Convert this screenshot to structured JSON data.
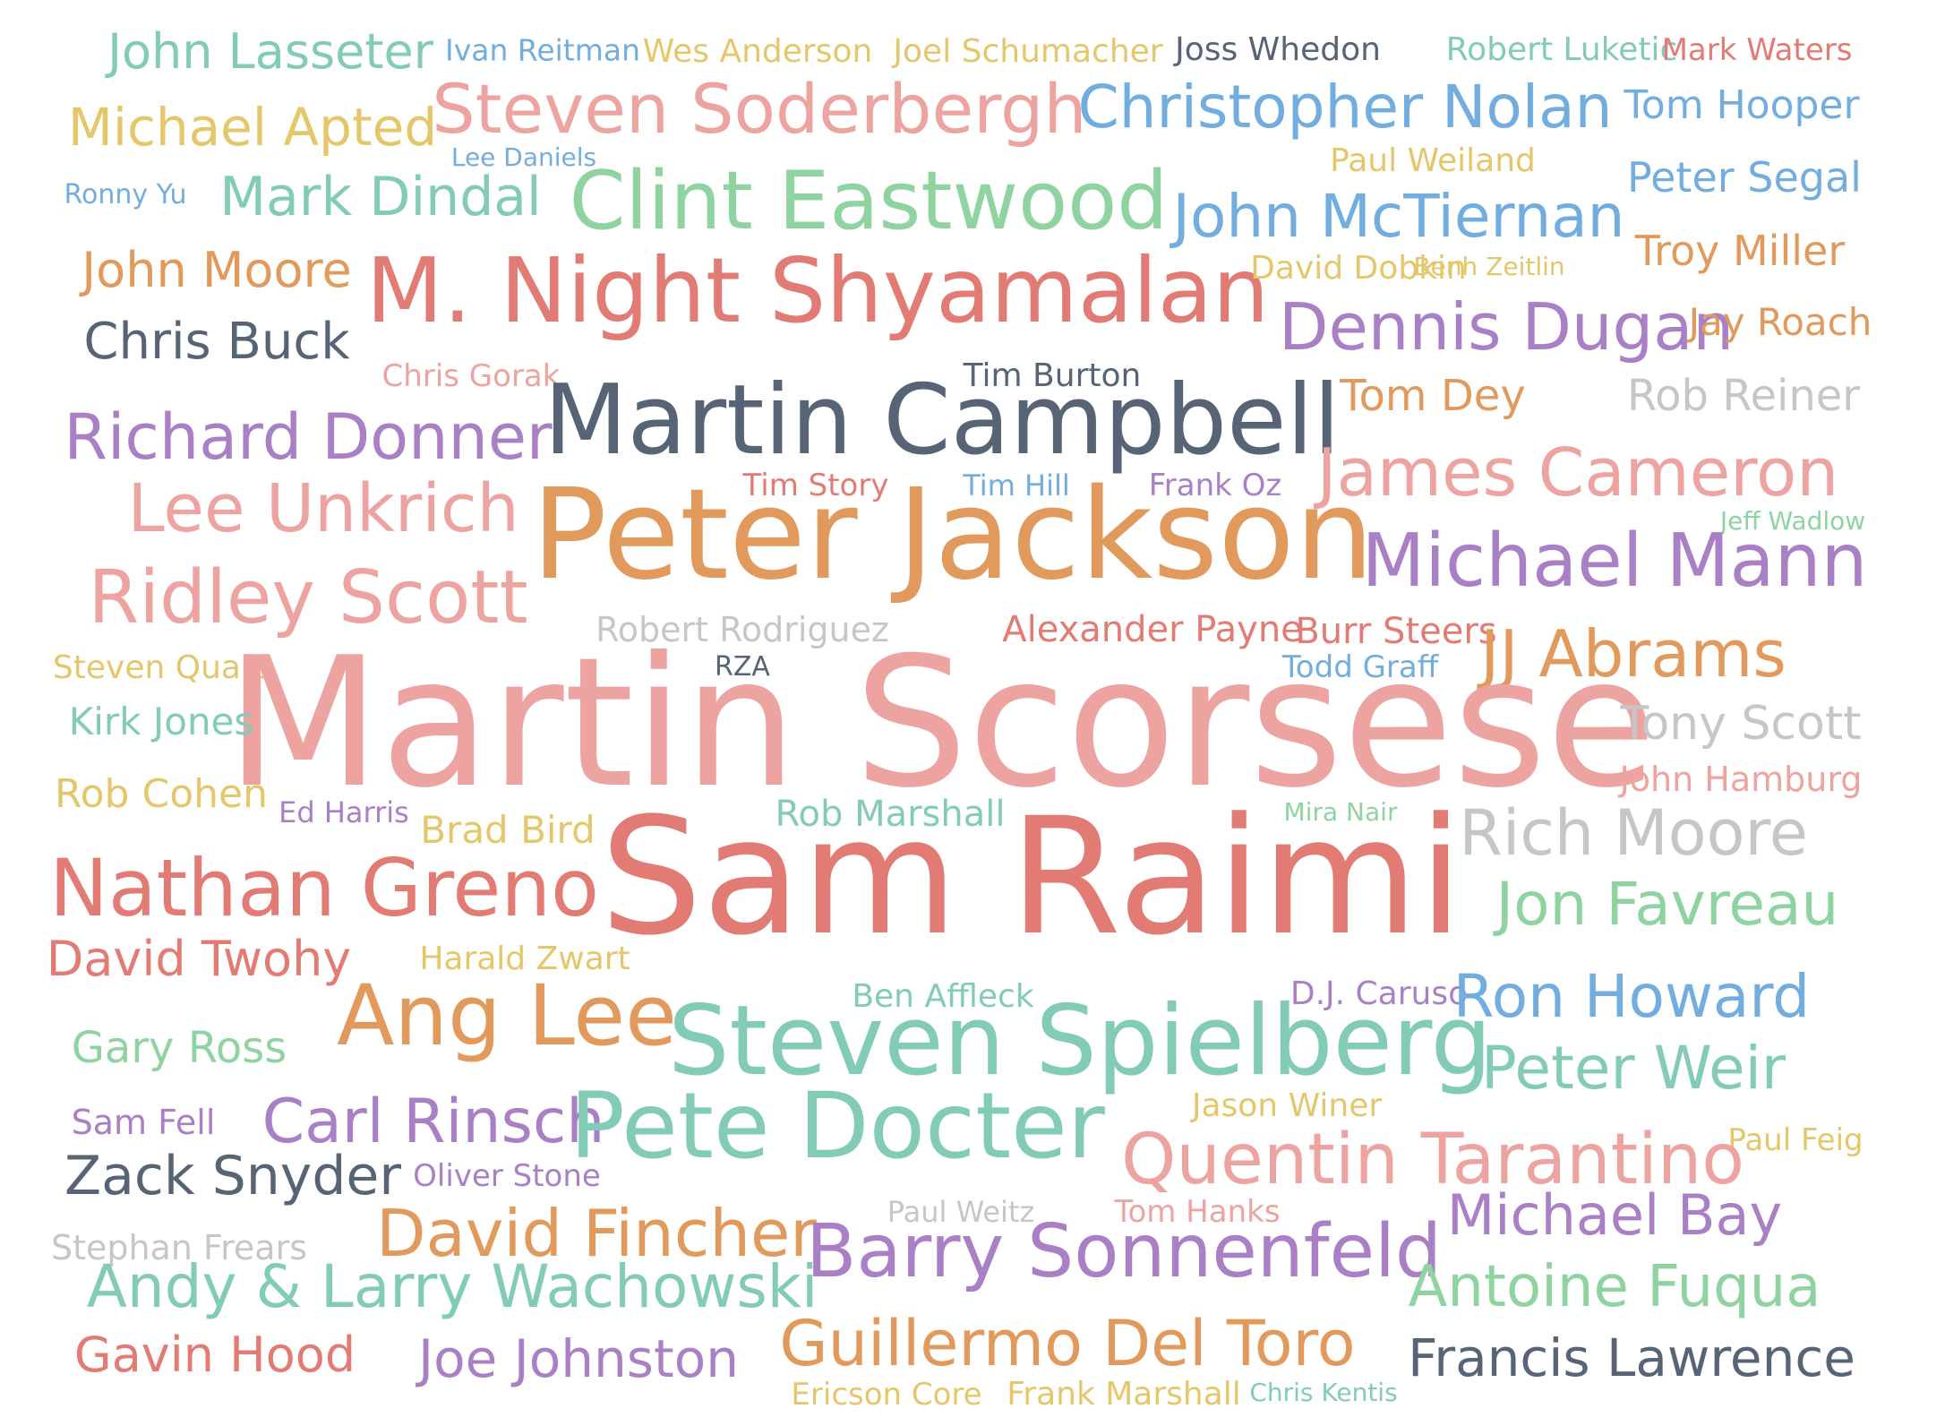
{
  "palette": {
    "teal": "#82cbb6",
    "blue": "#72ade0",
    "yellow": "#e4c76a",
    "slate": "#566476",
    "red": "#e27b73",
    "salmon": "#eda3a0",
    "green": "#8fd4a0",
    "orange": "#e29a5c",
    "purple": "#a97fc5",
    "gray": "#c6c6c6"
  },
  "words": [
    {
      "text": "John Lasseter",
      "c": "teal",
      "w": 2.5
    },
    {
      "text": "Ivan Reitman",
      "c": "blue",
      "w": 1.5
    },
    {
      "text": "Wes Anderson",
      "c": "yellow",
      "w": 1.8
    },
    {
      "text": "Joel Schumacher",
      "c": "yellow",
      "w": 1.8
    },
    {
      "text": "Joss Whedon",
      "c": "slate",
      "w": 1.8
    },
    {
      "text": "Robert Luketic",
      "c": "teal",
      "w": 1.8
    },
    {
      "text": "Mark Waters",
      "c": "red",
      "w": 1.6
    },
    {
      "text": "Michael Apted",
      "c": "yellow",
      "w": 2.7
    },
    {
      "text": "Steven Soderbergh",
      "c": "salmon",
      "w": 3.6
    },
    {
      "text": "Christopher Nolan",
      "c": "blue",
      "w": 3.2
    },
    {
      "text": "Tom Hooper",
      "c": "blue",
      "w": 2.1
    },
    {
      "text": "Lee Daniels",
      "c": "blue",
      "w": 1.4
    },
    {
      "text": "Paul Weiland",
      "c": "yellow",
      "w": 1.7
    },
    {
      "text": "Ronny Yu",
      "c": "blue",
      "w": 1.5
    },
    {
      "text": "Mark Dindal",
      "c": "teal",
      "w": 2.9
    },
    {
      "text": "Clint Eastwood",
      "c": "green",
      "w": 4.2
    },
    {
      "text": "John McTiernan",
      "c": "blue",
      "w": 3.2
    },
    {
      "text": "Peter Segal",
      "c": "blue",
      "w": 2.3
    },
    {
      "text": "John Moore",
      "c": "orange",
      "w": 2.6
    },
    {
      "text": "M. Night Shyamalan",
      "c": "red",
      "w": 5
    },
    {
      "text": "David Dobkin",
      "c": "yellow",
      "w": 1.8
    },
    {
      "text": "Benh Zeitlin",
      "c": "yellow",
      "w": 1.4
    },
    {
      "text": "Troy Miller",
      "c": "orange",
      "w": 2.3
    },
    {
      "text": "Chris Buck",
      "c": "slate",
      "w": 2.7
    },
    {
      "text": "Dennis Dugan",
      "c": "purple",
      "w": 3.4
    },
    {
      "text": "Jay Roach",
      "c": "orange",
      "w": 2
    },
    {
      "text": "Chris Gorak",
      "c": "salmon",
      "w": 1.6
    },
    {
      "text": "Tim Burton",
      "c": "slate",
      "w": 1.7
    },
    {
      "text": "Tom Dey",
      "c": "orange",
      "w": 2.3
    },
    {
      "text": "Rob Reiner",
      "c": "gray",
      "w": 2.3
    },
    {
      "text": "Richard Donner",
      "c": "purple",
      "w": 3.4
    },
    {
      "text": "Martin Campbell",
      "c": "slate",
      "w": 5.3
    },
    {
      "text": "Tim Story",
      "c": "red",
      "w": 1.6
    },
    {
      "text": "Tim Hill",
      "c": "blue",
      "w": 1.5
    },
    {
      "text": "Frank Oz",
      "c": "purple",
      "w": 1.6
    },
    {
      "text": "James Cameron",
      "c": "salmon",
      "w": 3.6
    },
    {
      "text": "Lee Unkrich",
      "c": "salmon",
      "w": 3.6
    },
    {
      "text": "Peter Jackson",
      "c": "orange",
      "w": 7.1
    },
    {
      "text": "Jeff Wadlow",
      "c": "green",
      "w": 1.3
    },
    {
      "text": "Michael Mann",
      "c": "purple",
      "w": 3.9
    },
    {
      "text": "Ridley Scott",
      "c": "salmon",
      "w": 4.1
    },
    {
      "text": "Robert Rodriguez",
      "c": "gray",
      "w": 1.8
    },
    {
      "text": "Alexander Payne",
      "c": "red",
      "w": 1.9
    },
    {
      "text": "Burr Steers",
      "c": "red",
      "w": 1.9
    },
    {
      "text": "JJ Abrams",
      "c": "orange",
      "w": 3.6
    },
    {
      "text": "Steven Quale",
      "c": "yellow",
      "w": 1.7
    },
    {
      "text": "RZA",
      "c": "slate",
      "w": 1.4
    },
    {
      "text": "Todd Graff",
      "c": "blue",
      "w": 1.6
    },
    {
      "text": "Martin Scorsese",
      "c": "salmon",
      "w": 10
    },
    {
      "text": "Kirk Jones",
      "c": "teal",
      "w": 2
    },
    {
      "text": "Tony Scott",
      "c": "gray",
      "w": 2.5
    },
    {
      "text": "John Hamburg",
      "c": "salmon",
      "w": 1.8
    },
    {
      "text": "Rob Cohen",
      "c": "yellow",
      "w": 2.1
    },
    {
      "text": "Ed Harris",
      "c": "purple",
      "w": 1.5
    },
    {
      "text": "Brad Bird",
      "c": "yellow",
      "w": 2.1
    },
    {
      "text": "Rob Marshall",
      "c": "teal",
      "w": 2
    },
    {
      "text": "Mira Nair",
      "c": "green",
      "w": 1.3
    },
    {
      "text": "Rich Moore",
      "c": "gray",
      "w": 3.5
    },
    {
      "text": "Nathan Greno",
      "c": "red",
      "w": 4.3
    },
    {
      "text": "Sam Raimi",
      "c": "red",
      "w": 8.9
    },
    {
      "text": "Jon Favreau",
      "c": "green",
      "w": 3.2
    },
    {
      "text": "David Twohy",
      "c": "red",
      "w": 2.6
    },
    {
      "text": "Harald Zwart",
      "c": "yellow",
      "w": 1.7
    },
    {
      "text": "Ben Affleck",
      "c": "teal",
      "w": 1.8
    },
    {
      "text": "D.J. Caruso",
      "c": "purple",
      "w": 1.7
    },
    {
      "text": "Ron Howard",
      "c": "blue",
      "w": 3.2
    },
    {
      "text": "Ang Lee",
      "c": "orange",
      "w": 4.6
    },
    {
      "text": "Steven Spielberg",
      "c": "teal",
      "w": 5.1
    },
    {
      "text": "Gary Ross",
      "c": "green",
      "w": 2.3
    },
    {
      "text": "Peter Weir",
      "c": "teal",
      "w": 3.2
    },
    {
      "text": "Sam Fell",
      "c": "purple",
      "w": 1.8
    },
    {
      "text": "Carl Rinsch",
      "c": "purple",
      "w": 3.3
    },
    {
      "text": "Pete Docter",
      "c": "teal",
      "w": 4.9
    },
    {
      "text": "Jason Winer",
      "c": "yellow",
      "w": 1.7
    },
    {
      "text": "Paul Feig",
      "c": "yellow",
      "w": 1.6
    },
    {
      "text": "Zack Snyder",
      "c": "slate",
      "w": 2.9
    },
    {
      "text": "Oliver Stone",
      "c": "purple",
      "w": 1.6
    },
    {
      "text": "Quentin Tarantino",
      "c": "salmon",
      "w": 3.9
    },
    {
      "text": "Paul Weitz",
      "c": "gray",
      "w": 1.4
    },
    {
      "text": "Tom Hanks",
      "c": "salmon",
      "w": 1.7
    },
    {
      "text": "Michael Bay",
      "c": "purple",
      "w": 3
    },
    {
      "text": "Stephan Frears",
      "c": "gray",
      "w": 1.8
    },
    {
      "text": "David Fincher",
      "c": "orange",
      "w": 3.5
    },
    {
      "text": "Barry Sonnenfeld",
      "c": "purple",
      "w": 3.9
    },
    {
      "text": "Andy & Larry Wachowski",
      "c": "teal",
      "w": 3.2
    },
    {
      "text": "Antoine Fuqua",
      "c": "green",
      "w": 3.1
    },
    {
      "text": "Gavin Hood",
      "c": "red",
      "w": 2.6
    },
    {
      "text": "Joe Johnston",
      "c": "purple",
      "w": 2.8
    },
    {
      "text": "Guillermo Del Toro",
      "c": "orange",
      "w": 3.4
    },
    {
      "text": "Francis Lawrence",
      "c": "slate",
      "w": 2.8
    },
    {
      "text": "Ericson Core",
      "c": "yellow",
      "w": 1.6
    },
    {
      "text": "Frank Marshall",
      "c": "yellow",
      "w": 1.8
    },
    {
      "text": "Chris Kentis",
      "c": "teal",
      "w": 1.3
    }
  ]
}
